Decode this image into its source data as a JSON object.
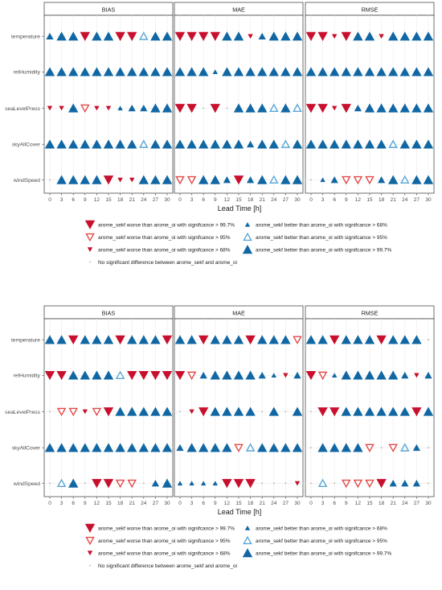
{
  "chart_data": [
    {
      "type": "scatter",
      "panels": [
        "BIAS",
        "MAE",
        "RMSE"
      ],
      "variables": [
        "temperature",
        "relHumidity",
        "seaLevelPress",
        "skyAllCover",
        "windSpeed"
      ],
      "x": [
        0,
        3,
        6,
        9,
        12,
        15,
        18,
        21,
        24,
        27,
        30
      ],
      "xlabel": "Lead Time [h]",
      "symbols": {
        "BIAS": [
          [
            "B2",
            "B3",
            "B3",
            "W3",
            "B3",
            "B3",
            "W3",
            "W3",
            "B2o",
            "B3",
            "B3"
          ],
          [
            "B3",
            "B3",
            "B3",
            "B3",
            "B3",
            "B3",
            "B3",
            "B3",
            "B3",
            "B3",
            "B3"
          ],
          [
            "W1",
            "W1",
            "B3",
            "W2",
            "W1",
            "W1",
            "B1",
            "B2",
            "B2",
            "B3",
            "B3"
          ],
          [
            "B3",
            "B3",
            "B3",
            "B3",
            "B3",
            "B3",
            "B3",
            "B3",
            "B2o",
            "B3",
            "B3"
          ],
          [
            "N",
            "B3",
            "B3",
            "B3",
            "B3",
            "W3",
            "W1",
            "W1",
            "B3",
            "B3",
            "B3"
          ]
        ],
        "MAE": [
          [
            "W3",
            "W3",
            "W3",
            "W3",
            "B3",
            "B3",
            "W1",
            "B2",
            "B3",
            "B3",
            "B3"
          ],
          [
            "B3",
            "B3",
            "B3",
            "B1",
            "B3",
            "B3",
            "B3",
            "B3",
            "B3",
            "B3",
            "B3"
          ],
          [
            "W3",
            "W3",
            "N",
            "W3",
            "N",
            "B3",
            "B3",
            "B3",
            "B2o",
            "B3",
            "B2o"
          ],
          [
            "B3",
            "B3",
            "B3",
            "B3",
            "B3",
            "B3",
            "B2",
            "B3",
            "B3",
            "B2o",
            "B3"
          ],
          [
            "W2",
            "W2",
            "B3",
            "B3",
            "B2",
            "W3",
            "B2",
            "B3",
            "B2o",
            "B3",
            "B3"
          ]
        ],
        "RMSE": [
          [
            "W3",
            "W3",
            "W1",
            "W3",
            "B3",
            "B3",
            "W1",
            "B3",
            "B3",
            "B3",
            "B3"
          ],
          [
            "B3",
            "B3",
            "B3",
            "B3",
            "B3",
            "B3",
            "B3",
            "B3",
            "B3",
            "B3",
            "B3"
          ],
          [
            "W3",
            "W3",
            "W1",
            "W3",
            "B2",
            "B3",
            "B3",
            "B3",
            "B3",
            "B3",
            "B3"
          ],
          [
            "B3",
            "B3",
            "B3",
            "B3",
            "B3",
            "B3",
            "B3",
            "B2o",
            "B3",
            "B3",
            "B3"
          ],
          [
            "N",
            "B1",
            "B2",
            "W2",
            "W2",
            "W2",
            "B2",
            "B3",
            "B2o",
            "B3",
            "B3"
          ]
        ]
      },
      "legend": [
        {
          "key": "W3",
          "label": "arome_sekf worse than arome_oi with signifcance > 99.7%"
        },
        {
          "key": "B1",
          "label": "arome_sekf better than arome_oi with signifcance > 68%"
        },
        {
          "key": "W2",
          "label": "arome_sekf worse than arome_oi with signifcance > 95%"
        },
        {
          "key": "B2o",
          "label": "arome_sekf better than arome_oi with signifcance > 95%"
        },
        {
          "key": "W1",
          "label": "arome_sekf worse than arome_oi with signifcance > 68%"
        },
        {
          "key": "B3",
          "label": "arome_sekf better than arome_oi with signifcance > 99.7%"
        },
        {
          "key": "N",
          "label": "No significant difference between arome_sekf and arome_oi"
        }
      ]
    },
    {
      "type": "scatter",
      "panels": [
        "BIAS",
        "MAE",
        "RMSE"
      ],
      "variables": [
        "temperature",
        "relHumidity",
        "seaLevelPress",
        "skyAllCover",
        "windSpeed"
      ],
      "x": [
        0,
        3,
        6,
        9,
        12,
        15,
        18,
        21,
        24,
        27,
        30
      ],
      "xlabel": "Lead Time [h]",
      "symbols": {
        "BIAS": [
          [
            "B3",
            "B3",
            "W3",
            "B3",
            "B3",
            "B3",
            "W3",
            "B3",
            "B3",
            "B3",
            "W3"
          ],
          [
            "W3",
            "W3",
            "B3",
            "B3",
            "B3",
            "B3",
            "B2o",
            "W3",
            "W3",
            "W3",
            "W3"
          ],
          [
            "N",
            "W2",
            "W2",
            "W1",
            "W2",
            "W3",
            "B3",
            "B3",
            "B3",
            "B3",
            "B3"
          ],
          [
            "B3",
            "B3",
            "B3",
            "B3",
            "B3",
            "B3",
            "B3",
            "B3",
            "B3",
            "B3",
            "B3"
          ],
          [
            "N",
            "B2o",
            "B3",
            "N",
            "W3",
            "W3",
            "W2",
            "W2",
            "N",
            "B2",
            "B3"
          ]
        ],
        "MAE": [
          [
            "B3",
            "B3",
            "W3",
            "B3",
            "B3",
            "B3",
            "W3",
            "B3",
            "B3",
            "B3",
            "W2"
          ],
          [
            "W3",
            "W2",
            "B2",
            "B3",
            "B3",
            "B3",
            "B3",
            "B2",
            "B1",
            "W1",
            "B2"
          ],
          [
            "N",
            "W1",
            "W3",
            "B3",
            "B3",
            "B3",
            "B3",
            "N",
            "B3",
            "N",
            "B3"
          ],
          [
            "B2",
            "B3",
            "B3",
            "B3",
            "B3",
            "W2",
            "B2o",
            "B3",
            "B3",
            "B3",
            "B3"
          ],
          [
            "B1",
            "B1",
            "B1",
            "B1",
            "W3",
            "W3",
            "W3",
            "N",
            "N",
            "N",
            "W1"
          ]
        ],
        "RMSE": [
          [
            "B3",
            "B3",
            "W3",
            "B3",
            "B3",
            "B3",
            "W3",
            "B3",
            "B3",
            "B3",
            "N"
          ],
          [
            "W3",
            "W2",
            "B1",
            "B3",
            "B3",
            "B3",
            "B3",
            "B3",
            "B2",
            "W1",
            "B2"
          ],
          [
            "N",
            "W3",
            "W3",
            "B3",
            "B3",
            "B3",
            "B3",
            "B3",
            "B3",
            "W3",
            "B3"
          ],
          [
            "N",
            "B3",
            "B3",
            "B3",
            "B3",
            "W2",
            "N",
            "W2",
            "B2o",
            "B2",
            "N"
          ],
          [
            "N",
            "B2o",
            "N",
            "W2",
            "W2",
            "W2",
            "W3",
            "B2",
            "B2",
            "B2",
            "N"
          ]
        ]
      },
      "legend": [
        {
          "key": "W3",
          "label": "arome_sekf worse than arome_oi with signifcance > 99.7%"
        },
        {
          "key": "B1",
          "label": "arome_sekf better than arome_oi with signifcance > 68%"
        },
        {
          "key": "W2",
          "label": "arome_sekf worse than arome_oi with signifcance > 95%"
        },
        {
          "key": "B2o",
          "label": "arome_sekf better than arome_oi with signifcance > 95%"
        },
        {
          "key": "W1",
          "label": "arome_sekf worse than arome_oi with signifcance > 68%"
        },
        {
          "key": "B3",
          "label": "arome_sekf better than arome_oi with signifcance > 99.7%"
        },
        {
          "key": "N",
          "label": "No significant difference between arome_sekf and arome_oi"
        }
      ]
    }
  ],
  "colors": {
    "worse": "#C8102E",
    "worse_light": "#E34A4A",
    "better": "#1167A3",
    "better_light": "#5AA6D6",
    "neutral": "#C9A5A5",
    "grid": "#EBEBEB",
    "axis_text": "#4D4D4D"
  }
}
